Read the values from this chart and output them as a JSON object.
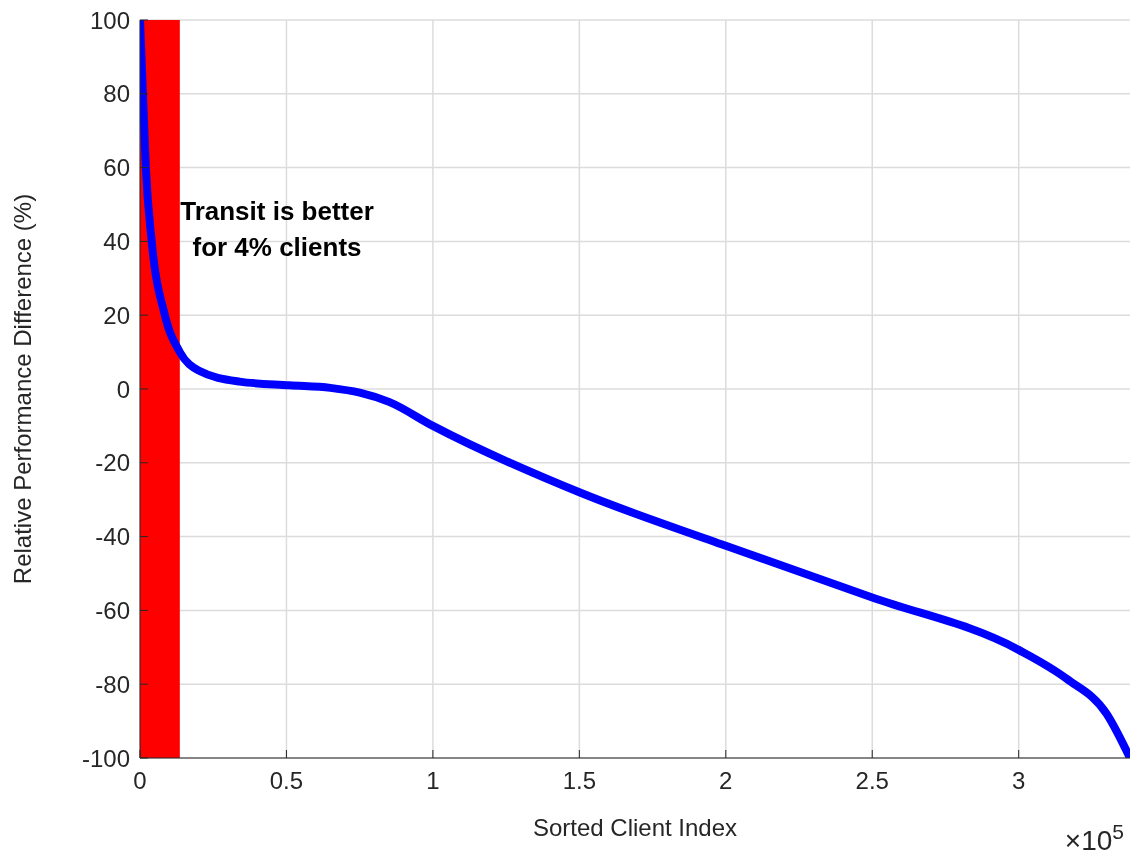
{
  "chart_data": {
    "type": "line",
    "xlabel": "Sorted Client Index",
    "ylabel": "Relative Performance Difference (%)",
    "x": [
      0,
      0.01,
      0.02,
      0.04,
      0.085,
      0.136,
      0.2,
      0.34,
      0.51,
      0.65,
      0.75,
      0.85,
      1,
      1.5,
      2,
      2.5,
      3,
      3.165,
      3.3,
      3.38
    ],
    "series": [
      {
        "color": "#0000ff",
        "values": [
          100,
          80,
          60,
          40,
          20,
          10,
          5,
          2,
          1,
          0.3,
          -1,
          -3.5,
          -10,
          -28,
          -42.5,
          -56.5,
          -70.7,
          -78.6,
          -88,
          -100
        ]
      }
    ],
    "xlim": [
      0,
      3.38
    ],
    "xticks": [
      0,
      0.5,
      1,
      1.5,
      2,
      2.5,
      3
    ],
    "ylim": [
      -100,
      100
    ],
    "yticks": [
      -100,
      -80,
      -60,
      -40,
      -20,
      0,
      20,
      40,
      60,
      80,
      100
    ],
    "bands": [
      {
        "axis": "x",
        "from": 0,
        "to": 0.136,
        "label": "Transit is better\nfor 4% clients",
        "color": "#ff0000"
      }
    ],
    "annotations": [
      "×10$^{5}$"
    ],
    "grid": true,
    "marker": "none",
    "line_style": "solid"
  }
}
